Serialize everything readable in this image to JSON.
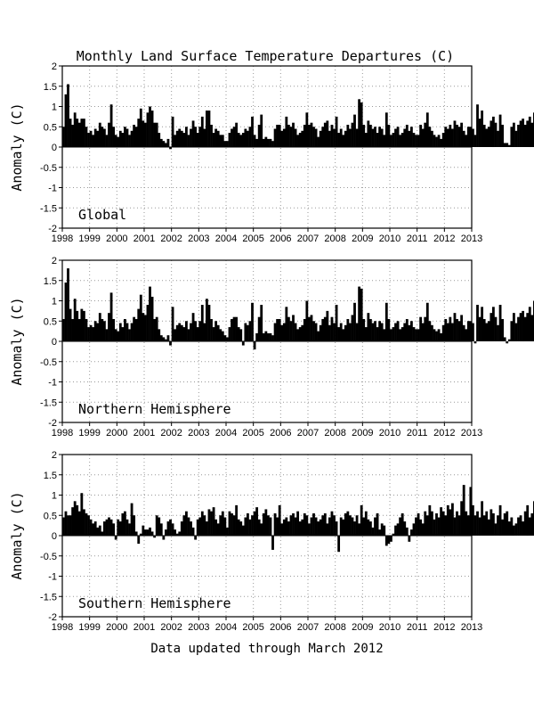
{
  "title": "Monthly Land Surface Temperature Departures (C)",
  "footer": "Data updated through March 2012",
  "chart_data": [
    {
      "type": "bar",
      "panel_label": "Global",
      "ylabel": "Anomaly (C)",
      "xlim": [
        1998,
        2013
      ],
      "ylim": [
        -2,
        2
      ],
      "x_ticks": [
        "1998",
        "1999",
        "2000",
        "2001",
        "2002",
        "2003",
        "2004",
        "2005",
        "2006",
        "2007",
        "2008",
        "2009",
        "2010",
        "2011",
        "2012",
        "2013"
      ],
      "y_ticks": [
        "-2",
        "-1.5",
        "-1",
        "-0.5",
        "0",
        "0.5",
        "1",
        "1.5",
        "2"
      ],
      "grid": true,
      "start": "1998-01",
      "values": [
        0.5,
        1.3,
        1.55,
        0.7,
        0.55,
        0.85,
        0.7,
        0.6,
        0.7,
        0.7,
        0.5,
        0.35,
        0.4,
        0.3,
        0.45,
        0.4,
        0.6,
        0.5,
        0.45,
        0.3,
        0.6,
        1.05,
        0.5,
        0.3,
        0.25,
        0.4,
        0.35,
        0.5,
        0.45,
        0.3,
        0.4,
        0.55,
        0.5,
        0.7,
        0.95,
        0.65,
        0.6,
        0.85,
        1.0,
        0.9,
        0.6,
        0.6,
        0.35,
        0.2,
        0.15,
        0.1,
        0.2,
        -0.05,
        0.75,
        0.3,
        0.4,
        0.45,
        0.4,
        0.35,
        0.5,
        0.3,
        0.45,
        0.65,
        0.5,
        0.35,
        0.5,
        0.75,
        0.45,
        0.9,
        0.9,
        0.55,
        0.35,
        0.45,
        0.4,
        0.3,
        0.3,
        0.15,
        0.15,
        0.35,
        0.45,
        0.5,
        0.6,
        0.35,
        0.3,
        0.35,
        0.45,
        0.4,
        0.5,
        0.75,
        0.3,
        0.2,
        0.55,
        0.8,
        0.2,
        0.25,
        0.2,
        0.2,
        0.15,
        0.45,
        0.55,
        0.55,
        0.4,
        0.45,
        0.75,
        0.55,
        0.5,
        0.6,
        0.45,
        0.3,
        0.35,
        0.4,
        0.55,
        0.85,
        0.55,
        0.6,
        0.5,
        0.45,
        0.25,
        0.4,
        0.5,
        0.6,
        0.65,
        0.4,
        0.55,
        0.45,
        0.75,
        0.35,
        0.45,
        0.3,
        0.4,
        0.55,
        0.45,
        0.6,
        0.8,
        0.45,
        1.18,
        1.1,
        0.55,
        0.35,
        0.65,
        0.55,
        0.45,
        0.5,
        0.35,
        0.5,
        0.45,
        0.3,
        0.85,
        0.55,
        0.3,
        0.35,
        0.45,
        0.5,
        0.3,
        0.35,
        0.45,
        0.55,
        0.4,
        0.5,
        0.35,
        0.3,
        0.3,
        0.55,
        0.45,
        0.6,
        0.85,
        0.5,
        0.4,
        0.3,
        0.25,
        0.3,
        0.2,
        0.35,
        0.5,
        0.45,
        0.55,
        0.45,
        0.65,
        0.55,
        0.5,
        0.6,
        0.4,
        0.3,
        0.5,
        0.5,
        0.45,
        0.3,
        1.05,
        0.7,
        0.9,
        0.55,
        0.45,
        0.5,
        0.65,
        0.75,
        0.6,
        0.4,
        0.8,
        0.55,
        0.1,
        0.1,
        0.05,
        0.5,
        0.6,
        0.4,
        0.55,
        0.65,
        0.7,
        0.55,
        0.65,
        0.75,
        0.6,
        0.85,
        1.5,
        0.6,
        0.3,
        1.2
      ]
    },
    {
      "type": "bar",
      "panel_label": "Northern Hemisphere",
      "ylabel": "Anomaly (C)",
      "xlim": [
        1998,
        2013
      ],
      "ylim": [
        -2,
        2
      ],
      "x_ticks": [
        "1998",
        "1999",
        "2000",
        "2001",
        "2002",
        "2003",
        "2004",
        "2005",
        "2006",
        "2007",
        "2008",
        "2009",
        "2010",
        "2011",
        "2012",
        "2013"
      ],
      "y_ticks": [
        "-2",
        "-1.5",
        "-1",
        "-0.5",
        "0",
        "0.5",
        "1",
        "1.5",
        "2"
      ],
      "grid": true,
      "start": "1998-01",
      "values": [
        0.55,
        1.45,
        1.8,
        0.8,
        0.55,
        1.05,
        0.75,
        0.55,
        0.8,
        0.75,
        0.55,
        0.35,
        0.4,
        0.35,
        0.5,
        0.45,
        0.7,
        0.55,
        0.5,
        0.3,
        0.7,
        1.2,
        0.55,
        0.3,
        0.25,
        0.45,
        0.35,
        0.55,
        0.45,
        0.3,
        0.45,
        0.6,
        0.55,
        0.8,
        1.15,
        0.7,
        0.65,
        0.9,
        1.35,
        1.1,
        0.55,
        0.6,
        0.3,
        0.15,
        0.1,
        0.05,
        0.15,
        -0.1,
        0.85,
        0.3,
        0.4,
        0.45,
        0.4,
        0.35,
        0.5,
        0.3,
        0.45,
        0.7,
        0.5,
        0.35,
        0.5,
        0.9,
        0.45,
        1.05,
        0.9,
        0.55,
        0.35,
        0.5,
        0.4,
        0.3,
        0.25,
        0.15,
        0.1,
        0.35,
        0.55,
        0.6,
        0.6,
        0.35,
        0.3,
        -0.1,
        0.45,
        0.4,
        0.5,
        0.95,
        -0.2,
        0.2,
        0.6,
        0.9,
        0.2,
        0.25,
        0.2,
        0.2,
        0.15,
        0.45,
        0.55,
        0.55,
        0.4,
        0.45,
        0.85,
        0.6,
        0.5,
        0.65,
        0.45,
        0.3,
        0.35,
        0.4,
        0.55,
        1.0,
        0.6,
        0.65,
        0.5,
        0.45,
        0.25,
        0.4,
        0.55,
        0.6,
        0.75,
        0.4,
        0.6,
        0.45,
        0.9,
        0.35,
        0.45,
        0.3,
        0.4,
        0.55,
        0.45,
        0.65,
        0.95,
        0.45,
        1.35,
        1.3,
        0.55,
        0.35,
        0.7,
        0.55,
        0.45,
        0.5,
        0.35,
        0.5,
        0.45,
        0.3,
        0.95,
        0.55,
        0.3,
        0.35,
        0.45,
        0.5,
        0.3,
        0.35,
        0.45,
        0.55,
        0.4,
        0.5,
        0.35,
        0.3,
        0.3,
        0.6,
        0.45,
        0.6,
        0.95,
        0.5,
        0.4,
        0.3,
        0.25,
        0.3,
        0.2,
        0.4,
        0.55,
        0.45,
        0.6,
        0.45,
        0.7,
        0.55,
        0.5,
        0.65,
        0.4,
        0.3,
        0.5,
        0.5,
        0.45,
        -0.05,
        0.9,
        0.6,
        0.85,
        0.55,
        0.45,
        0.5,
        0.7,
        0.85,
        0.6,
        0.4,
        0.9,
        0.55,
        0.1,
        -0.05,
        0.05,
        0.5,
        0.7,
        0.45,
        0.6,
        0.7,
        0.75,
        0.6,
        0.7,
        0.85,
        0.65,
        1.0,
        1.7,
        0.6,
        0.3,
        1.35
      ]
    },
    {
      "type": "bar",
      "panel_label": "Southern Hemisphere",
      "ylabel": "Anomaly (C)",
      "xlim": [
        1998,
        2013
      ],
      "ylim": [
        -2,
        2
      ],
      "x_ticks": [
        "1998",
        "1999",
        "2000",
        "2001",
        "2002",
        "2003",
        "2004",
        "2005",
        "2006",
        "2007",
        "2008",
        "2009",
        "2010",
        "2011",
        "2012",
        "2013"
      ],
      "y_ticks": [
        "-2",
        "-1.5",
        "-1",
        "-0.5",
        "0",
        "0.5",
        "1",
        "1.5",
        "2"
      ],
      "grid": true,
      "start": "1998-01",
      "values": [
        0.45,
        0.6,
        0.5,
        0.5,
        0.7,
        0.85,
        0.75,
        0.6,
        1.05,
        0.65,
        0.55,
        0.5,
        0.4,
        0.3,
        0.35,
        0.2,
        0.25,
        0.1,
        0.35,
        0.4,
        0.45,
        0.4,
        0.3,
        -0.1,
        0.4,
        0.35,
        0.55,
        0.6,
        0.4,
        0.3,
        0.8,
        0.5,
        0.1,
        -0.2,
        0.05,
        0.25,
        0.15,
        0.15,
        0.2,
        0.1,
        -0.05,
        0.5,
        0.45,
        0.3,
        -0.1,
        0.15,
        0.35,
        0.4,
        0.3,
        0.15,
        0.05,
        0.1,
        0.35,
        0.5,
        0.6,
        0.45,
        0.35,
        0.2,
        -0.1,
        0.4,
        0.45,
        0.6,
        0.5,
        0.35,
        0.65,
        0.6,
        0.7,
        0.4,
        0.3,
        0.5,
        0.6,
        0.45,
        0.2,
        0.6,
        0.55,
        0.5,
        0.75,
        0.4,
        0.35,
        0.25,
        0.45,
        0.55,
        0.4,
        0.5,
        0.6,
        0.7,
        0.4,
        0.3,
        0.55,
        0.65,
        0.5,
        0.45,
        -0.35,
        0.55,
        0.45,
        0.75,
        0.3,
        0.4,
        0.45,
        0.35,
        0.5,
        0.55,
        0.45,
        0.6,
        0.35,
        0.4,
        0.55,
        0.5,
        0.3,
        0.45,
        0.55,
        0.45,
        0.35,
        0.4,
        0.5,
        0.55,
        0.3,
        0.45,
        0.6,
        0.5,
        0.35,
        -0.4,
        0.45,
        0.4,
        0.55,
        0.6,
        0.5,
        0.45,
        0.35,
        0.5,
        0.3,
        0.75,
        0.45,
        0.6,
        0.4,
        0.35,
        0.2,
        0.45,
        0.55,
        0.15,
        0.3,
        0.25,
        -0.25,
        -0.2,
        -0.15,
        0.05,
        0.25,
        0.3,
        0.45,
        0.55,
        0.35,
        0.2,
        -0.15,
        0.15,
        0.3,
        0.45,
        0.55,
        0.4,
        0.3,
        0.6,
        0.5,
        0.75,
        0.6,
        0.4,
        0.55,
        0.45,
        0.7,
        0.6,
        0.5,
        0.75,
        0.65,
        0.8,
        0.45,
        0.6,
        0.5,
        0.85,
        1.25,
        0.6,
        0.5,
        1.2,
        0.75,
        0.5,
        0.6,
        0.45,
        0.85,
        0.5,
        0.6,
        0.4,
        0.65,
        0.55,
        0.3,
        0.5,
        0.75,
        0.4,
        0.55,
        0.6,
        0.35,
        0.45,
        0.25,
        0.3,
        0.45,
        0.5,
        0.35,
        0.6,
        0.75,
        0.45,
        0.55,
        0.85,
        0.5,
        0.4,
        0.6,
        0.8,
        0.45,
        0.9,
        0.6,
        0.45
      ]
    }
  ]
}
